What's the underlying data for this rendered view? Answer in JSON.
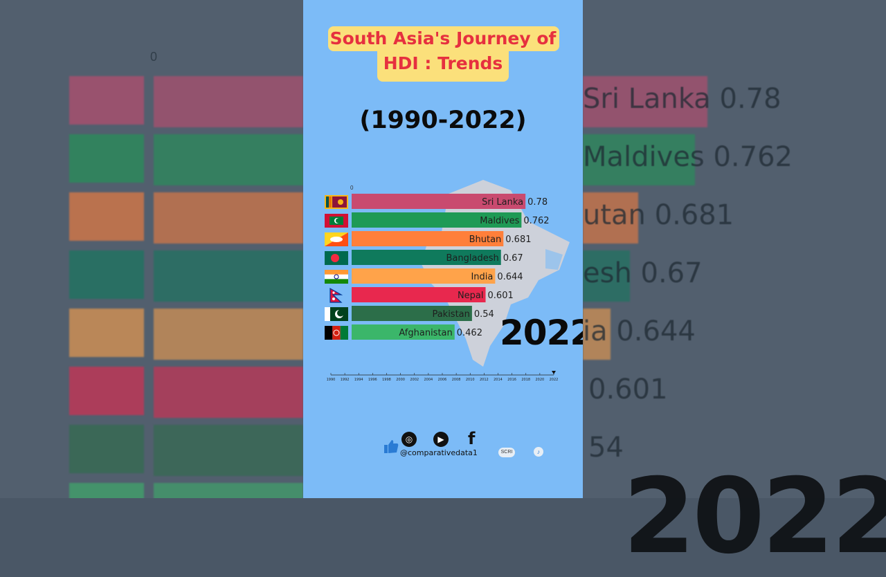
{
  "title_line1": "South Asia's Journey of",
  "title_line2": "HDI : Trends",
  "subtitle": "(1990-2022)",
  "zero_label": "0",
  "colors": {
    "background": "#7cbbf7",
    "title_box": "#fbe07b",
    "title_text": "#e6303f"
  },
  "chart_data": {
    "type": "bar",
    "orientation": "horizontal",
    "current_year": "2022",
    "xlim": [
      0,
      1
    ],
    "categories": [
      "Sri Lanka",
      "Maldives",
      "Bhutan",
      "Bangladesh",
      "India",
      "Nepal",
      "Pakistan",
      "Afghanistan"
    ],
    "values": [
      0.78,
      0.762,
      0.681,
      0.67,
      0.644,
      0.601,
      0.54,
      0.462
    ],
    "value_labels": [
      "0.78",
      "0.762",
      "0.681",
      "0.67",
      "0.644",
      "0.601",
      "0.54",
      "0.462"
    ],
    "bar_colors": [
      "#c94a6f",
      "#1e9a55",
      "#ff7f3a",
      "#0f7a5c",
      "#ffa34a",
      "#e8284e",
      "#2c6e49",
      "#3bb66a"
    ],
    "flag_icons": [
      "sri-lanka-flag-icon",
      "maldives-flag-icon",
      "bhutan-flag-icon",
      "bangladesh-flag-icon",
      "india-flag-icon",
      "nepal-flag-icon",
      "pakistan-flag-icon",
      "afghanistan-flag-icon"
    ],
    "timeline_ticks": [
      "1990",
      "1992",
      "1994",
      "1996",
      "1998",
      "2000",
      "2002",
      "2004",
      "2006",
      "2008",
      "2010",
      "2012",
      "2014",
      "2016",
      "2018",
      "2020",
      "2022"
    ]
  },
  "socials": {
    "icons": [
      "like-icon",
      "instagram-icon",
      "youtube-icon",
      "facebook-icon"
    ],
    "handle": "@comparativedata1",
    "subscribe_label": "SCRI",
    "facebook_glyph": "f"
  },
  "background_labels": [
    "Sri Lanka 0.78",
    "Maldives 0.762",
    "utan 0.681",
    "esh 0.67",
    "ia 0.644",
    "0.601",
    "54"
  ],
  "background_year": "2022"
}
